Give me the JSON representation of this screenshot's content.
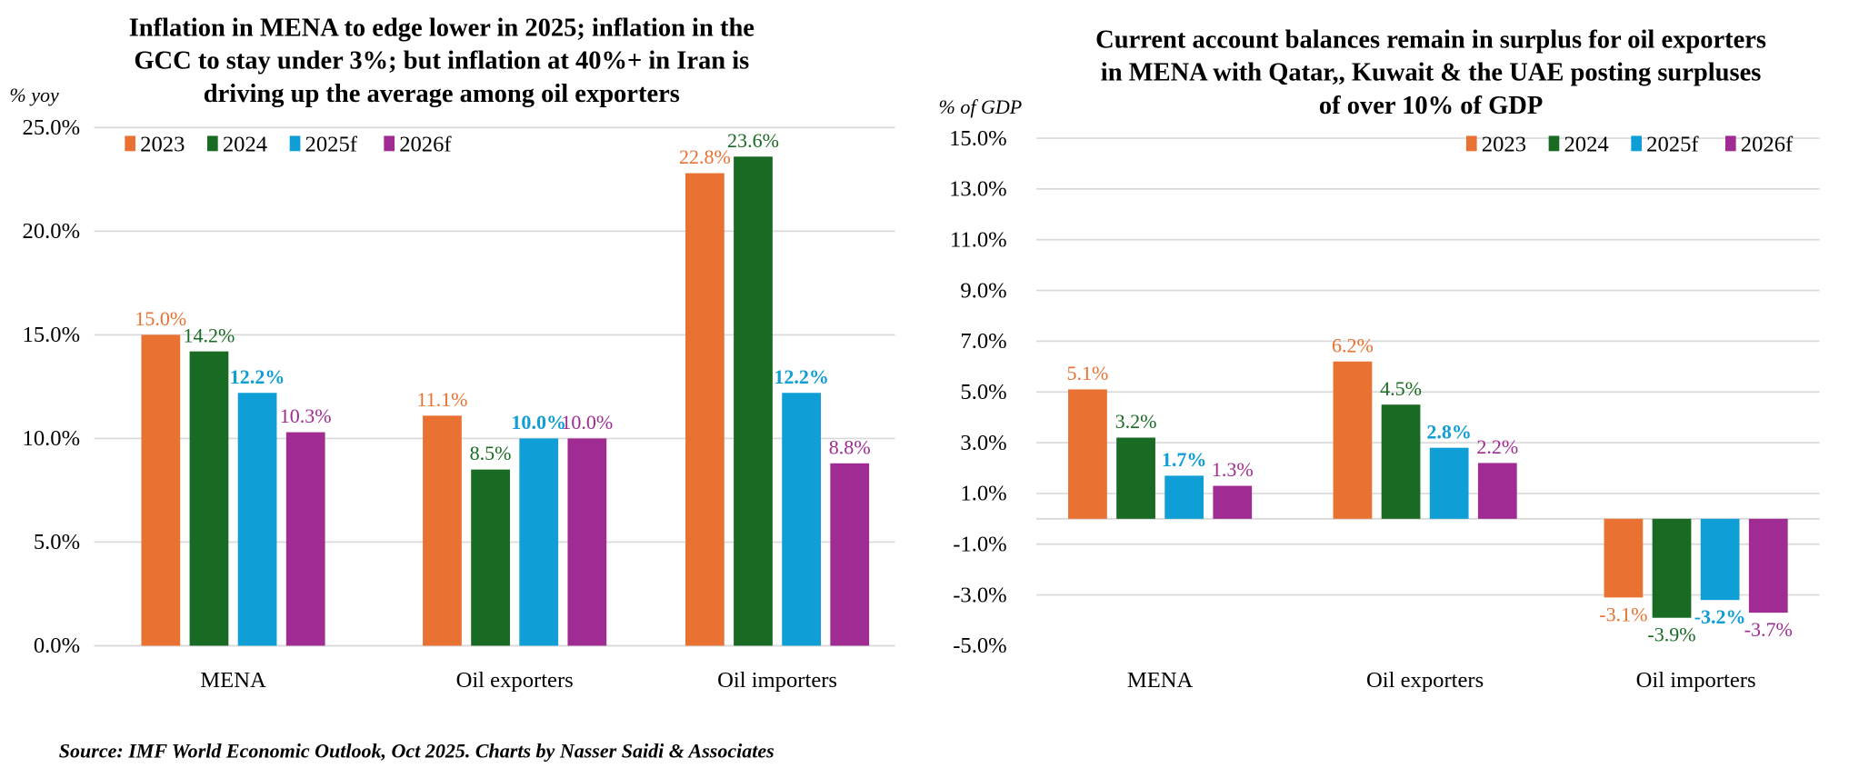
{
  "colors": {
    "2023": "#E97132",
    "2024": "#196B24",
    "2025f": "#0F9ED5",
    "2026f": "#A02B93",
    "grid": "#D9D9D9"
  },
  "source": "Source: IMF World Economic Outlook, Oct 2025. Charts by Nasser Saidi & Associates",
  "chart_data": [
    {
      "type": "bar",
      "title_lines": [
        "Inflation in MENA to edge lower in 2025; inflation in the",
        "GCC to stay under 3%; but inflation at 40%+ in Iran is",
        "driving up the average among oil exporters"
      ],
      "ylabel": "% yoy",
      "ylim": [
        0,
        25
      ],
      "yticks": [
        0,
        5,
        10,
        15,
        20,
        25
      ],
      "ytick_labels": [
        "0.0%",
        "5.0%",
        "10.0%",
        "15.0%",
        "20.0%",
        "25.0%"
      ],
      "grid": true,
      "legend": "top-left",
      "categories": [
        "MENA",
        "Oil exporters",
        "Oil importers"
      ],
      "series": [
        {
          "name": "2023",
          "values": [
            15.0,
            11.1,
            22.8
          ],
          "labels": [
            "15.0%",
            "11.1%",
            "22.8%"
          ]
        },
        {
          "name": "2024",
          "values": [
            14.2,
            8.5,
            23.6
          ],
          "labels": [
            "14.2%",
            "8.5%",
            "23.6%"
          ]
        },
        {
          "name": "2025f",
          "values": [
            12.2,
            10.0,
            12.2
          ],
          "labels": [
            "12.2%",
            "10.0%",
            "12.2%"
          ]
        },
        {
          "name": "2026f",
          "values": [
            10.3,
            10.0,
            8.8
          ],
          "labels": [
            "10.3%",
            "10.0%",
            "8.8%"
          ]
        }
      ]
    },
    {
      "type": "bar",
      "title_lines": [
        "Current account balances remain in surplus for oil exporters",
        "in MENA with Qatar,, Kuwait & the UAE posting surpluses",
        "of over 10% of GDP"
      ],
      "ylabel": "% of GDP",
      "ylim": [
        -5,
        15
      ],
      "yticks": [
        -5,
        -3,
        -1,
        1,
        3,
        5,
        7,
        9,
        11,
        13,
        15
      ],
      "ytick_labels": [
        "-5.0%",
        "-3.0%",
        "-1.0%",
        "1.0%",
        "3.0%",
        "5.0%",
        "7.0%",
        "9.0%",
        "11.0%",
        "13.0%",
        "15.0%"
      ],
      "grid": true,
      "legend": "top-right",
      "categories": [
        "MENA",
        "Oil exporters",
        "Oil importers"
      ],
      "series": [
        {
          "name": "2023",
          "values": [
            5.1,
            6.2,
            -3.1
          ],
          "labels": [
            "5.1%",
            "6.2%",
            "-3.1%"
          ]
        },
        {
          "name": "2024",
          "values": [
            3.2,
            4.5,
            -3.9
          ],
          "labels": [
            "3.2%",
            "4.5%",
            "-3.9%"
          ]
        },
        {
          "name": "2025f",
          "values": [
            1.7,
            2.8,
            -3.2
          ],
          "labels": [
            "1.7%",
            "2.8%",
            "-3.2%"
          ]
        },
        {
          "name": "2026f",
          "values": [
            1.3,
            2.2,
            -3.7
          ],
          "labels": [
            "1.3%",
            "2.2%",
            "-3.7%"
          ]
        }
      ]
    }
  ]
}
